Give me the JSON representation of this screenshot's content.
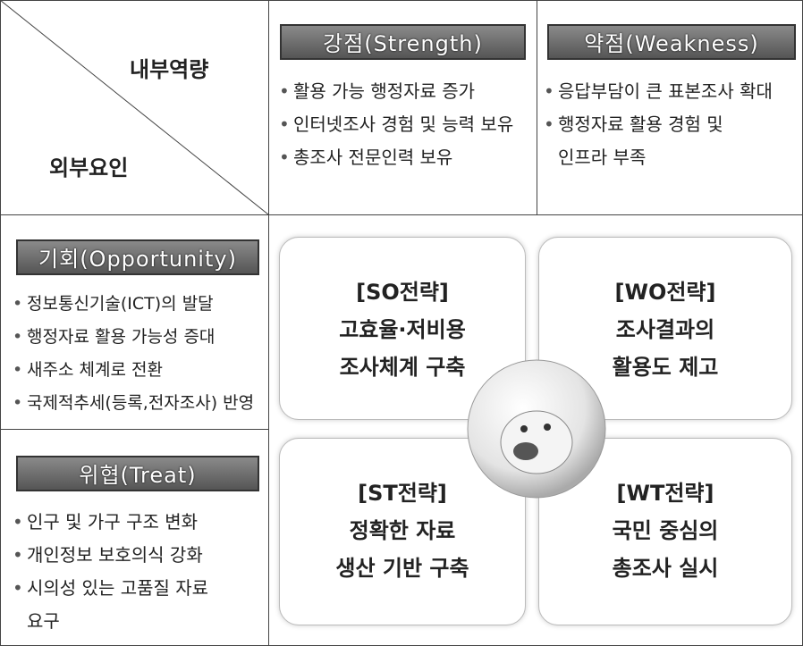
{
  "corner": {
    "internal": "내부역량",
    "external": "외부요인"
  },
  "strengths": {
    "title": "강점(Strength)",
    "items": [
      [
        "활용 가능 행정자료 증가"
      ],
      [
        "인터넷조사 경험 및 능력 보유"
      ],
      [
        "총조사 전문인력 보유"
      ]
    ]
  },
  "weaknesses": {
    "title": "약점(Weakness)",
    "items": [
      [
        "응답부담이 큰 표본조사 확대"
      ],
      [
        "행정자료 활용 경험 및",
        "인프라 부족"
      ]
    ]
  },
  "opportunities": {
    "title": "기회(Opportunity)",
    "items": [
      [
        "정보통신기술(ICT)의 발달"
      ],
      [
        "행정자료 활용 가능성 증대"
      ],
      [
        "새주소 체계로 전환"
      ],
      [
        "국제적추세(등록,전자조사) 반영"
      ]
    ]
  },
  "threats": {
    "title": "위협(Treat)",
    "items": [
      [
        "인구 및 가구 구조 변화"
      ],
      [
        "개인정보 보호의식 강화"
      ],
      [
        "시의성 있는 고품질 자료",
        "요구"
      ]
    ]
  },
  "strategies": [
    {
      "label": "[SO전략]",
      "lines": [
        "고효율·저비용",
        "조사체계 구축"
      ]
    },
    {
      "label": "[WO전략]",
      "lines": [
        "조사결과의",
        "활용도 제고"
      ]
    },
    {
      "label": "[ST전략]",
      "lines": [
        "정확한 자료",
        "생산 기반 구축"
      ]
    },
    {
      "label": "[WT전략]",
      "lines": [
        "국민 중심의",
        "총조사 실시"
      ]
    }
  ]
}
